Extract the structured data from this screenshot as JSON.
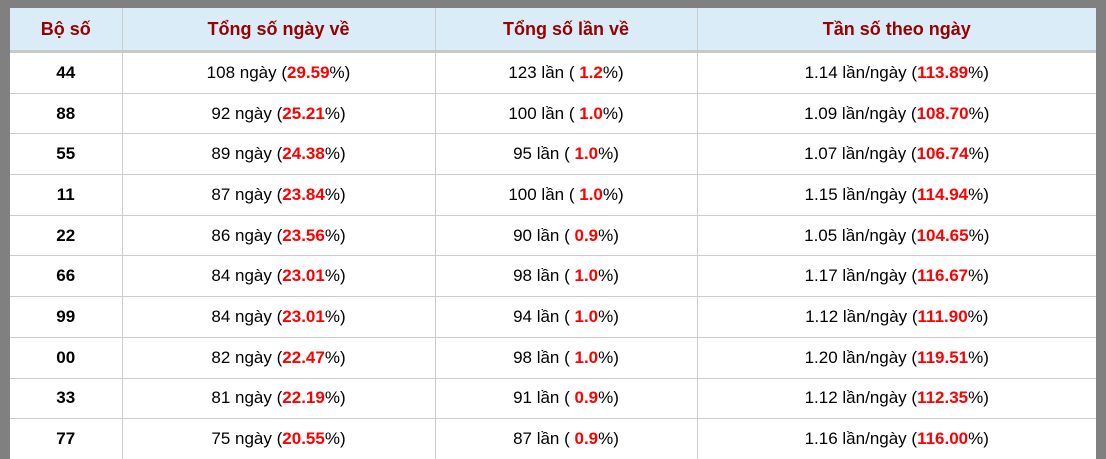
{
  "table": {
    "headers": [
      {
        "label": "Bộ số"
      },
      {
        "label": "Tổng số ngày về"
      },
      {
        "label": "Tổng số lần về"
      },
      {
        "label": "Tần số theo ngày"
      }
    ],
    "rows": [
      {
        "pair": "44",
        "days_pre": "108 ngày (",
        "days_red": "29.59",
        "days_post": "%)",
        "times_pre": "123 lần ( ",
        "times_red": "1.2",
        "times_post": "%)",
        "freq_pre": "1.14 lần/ngày (",
        "freq_red": "113.89",
        "freq_post": "%)"
      },
      {
        "pair": "88",
        "days_pre": "92 ngày (",
        "days_red": "25.21",
        "days_post": "%)",
        "times_pre": "100 lần ( ",
        "times_red": "1.0",
        "times_post": "%)",
        "freq_pre": "1.09 lần/ngày (",
        "freq_red": "108.70",
        "freq_post": "%)"
      },
      {
        "pair": "55",
        "days_pre": "89 ngày (",
        "days_red": "24.38",
        "days_post": "%)",
        "times_pre": "95 lần ( ",
        "times_red": "1.0",
        "times_post": "%)",
        "freq_pre": "1.07 lần/ngày (",
        "freq_red": "106.74",
        "freq_post": "%)"
      },
      {
        "pair": "11",
        "days_pre": "87 ngày (",
        "days_red": "23.84",
        "days_post": "%)",
        "times_pre": "100 lần ( ",
        "times_red": "1.0",
        "times_post": "%)",
        "freq_pre": "1.15 lần/ngày (",
        "freq_red": "114.94",
        "freq_post": "%)"
      },
      {
        "pair": "22",
        "days_pre": "86 ngày (",
        "days_red": "23.56",
        "days_post": "%)",
        "times_pre": "90 lần ( ",
        "times_red": "0.9",
        "times_post": "%)",
        "freq_pre": "1.05 lần/ngày (",
        "freq_red": "104.65",
        "freq_post": "%)"
      },
      {
        "pair": "66",
        "days_pre": "84 ngày (",
        "days_red": "23.01",
        "days_post": "%)",
        "times_pre": "98 lần ( ",
        "times_red": "1.0",
        "times_post": "%)",
        "freq_pre": "1.17 lần/ngày (",
        "freq_red": "116.67",
        "freq_post": "%)"
      },
      {
        "pair": "99",
        "days_pre": "84 ngày (",
        "days_red": "23.01",
        "days_post": "%)",
        "times_pre": "94 lần ( ",
        "times_red": "1.0",
        "times_post": "%)",
        "freq_pre": "1.12 lần/ngày (",
        "freq_red": "111.90",
        "freq_post": "%)"
      },
      {
        "pair": "00",
        "days_pre": "82 ngày (",
        "days_red": "22.47",
        "days_post": "%)",
        "times_pre": "98 lần ( ",
        "times_red": "1.0",
        "times_post": "%)",
        "freq_pre": "1.20 lần/ngày (",
        "freq_red": "119.51",
        "freq_post": "%)"
      },
      {
        "pair": "33",
        "days_pre": "81 ngày (",
        "days_red": "22.19",
        "days_post": "%)",
        "times_pre": "91 lần ( ",
        "times_red": "0.9",
        "times_post": "%)",
        "freq_pre": "1.12 lần/ngày (",
        "freq_red": "112.35",
        "freq_post": "%)"
      },
      {
        "pair": "77",
        "days_pre": "75 ngày (",
        "days_red": "20.55",
        "days_post": "%)",
        "times_pre": "87 lần ( ",
        "times_red": "0.9",
        "times_post": "%)",
        "freq_pre": "1.16 lần/ngày (",
        "freq_red": "116.00",
        "freq_post": "%)"
      }
    ]
  },
  "colors": {
    "frame_background": "#808080",
    "header_background": "#d9ecf7",
    "header_text": "#990000",
    "accent_red": "#ff0000",
    "row_border": "#cccccc"
  }
}
